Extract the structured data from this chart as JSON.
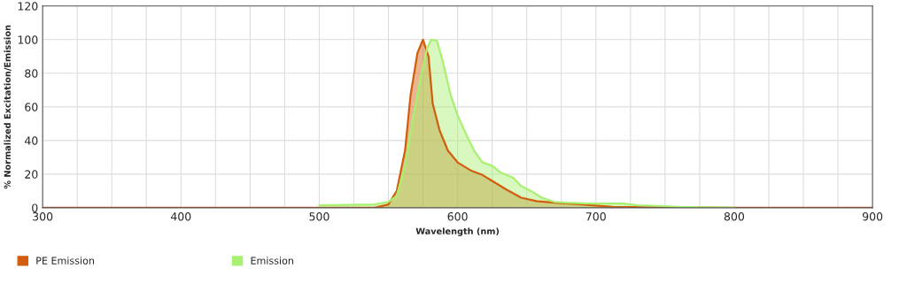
{
  "chart_data": {
    "type": "area",
    "xlabel": "Wavelength (nm)",
    "ylabel": "% Normalized Excitation/Emission",
    "xlim": [
      300,
      900
    ],
    "ylim": [
      0,
      120
    ],
    "xticks": [
      300,
      {
        "value": 325,
        "label": null
      },
      {
        "value": 350,
        "label": null
      },
      {
        "value": 375,
        "label": null
      },
      400,
      {
        "value": 425,
        "label": null
      },
      {
        "value": 450,
        "label": null
      },
      {
        "value": 475,
        "label": null
      },
      500,
      {
        "value": 525,
        "label": null
      },
      {
        "value": 550,
        "label": null
      },
      {
        "value": 575,
        "label": null
      },
      600,
      {
        "value": 625,
        "label": null
      },
      {
        "value": 650,
        "label": null
      },
      {
        "value": 675,
        "label": null
      },
      700,
      {
        "value": 725,
        "label": null
      },
      {
        "value": 750,
        "label": null
      },
      {
        "value": 775,
        "label": null
      },
      800,
      {
        "value": 825,
        "label": null
      },
      {
        "value": 850,
        "label": null
      },
      {
        "value": 875,
        "label": null
      },
      900
    ],
    "yticks": [
      0,
      20,
      40,
      60,
      80,
      100,
      120
    ],
    "grid": true,
    "legend": "bottom left",
    "series": [
      {
        "name": "PE Emission",
        "color": "#d15e0e",
        "x": [
          300,
          540,
          550,
          556,
          562,
          566,
          571,
          575,
          579,
          582,
          587,
          593,
          600,
          610,
          618,
          625,
          635,
          646,
          657,
          670,
          690,
          712,
          750,
          800,
          900
        ],
        "values": [
          0,
          0,
          2,
          10,
          34,
          67,
          92,
          100,
          90,
          62,
          46,
          34,
          27,
          22,
          19.5,
          16,
          11,
          6,
          4,
          3,
          2,
          0.5,
          0.3,
          0,
          0
        ]
      },
      {
        "name": "Emission",
        "color": "#a8f070",
        "x": [
          500,
          540,
          550,
          556,
          562,
          567,
          573,
          578,
          581,
          585,
          589,
          595,
          600,
          606,
          612,
          618,
          625,
          631,
          640,
          646,
          653,
          661,
          670,
          679,
          696,
          720,
          730,
          750,
          760,
          800
        ],
        "values": [
          1.5,
          2,
          3.5,
          7,
          25,
          50,
          76,
          95,
          100,
          99.5,
          88,
          67,
          55,
          44,
          34,
          27,
          25,
          21,
          18,
          13,
          10,
          6,
          3.5,
          3,
          2.5,
          2.5,
          1.5,
          1,
          0.5,
          0
        ]
      }
    ]
  }
}
